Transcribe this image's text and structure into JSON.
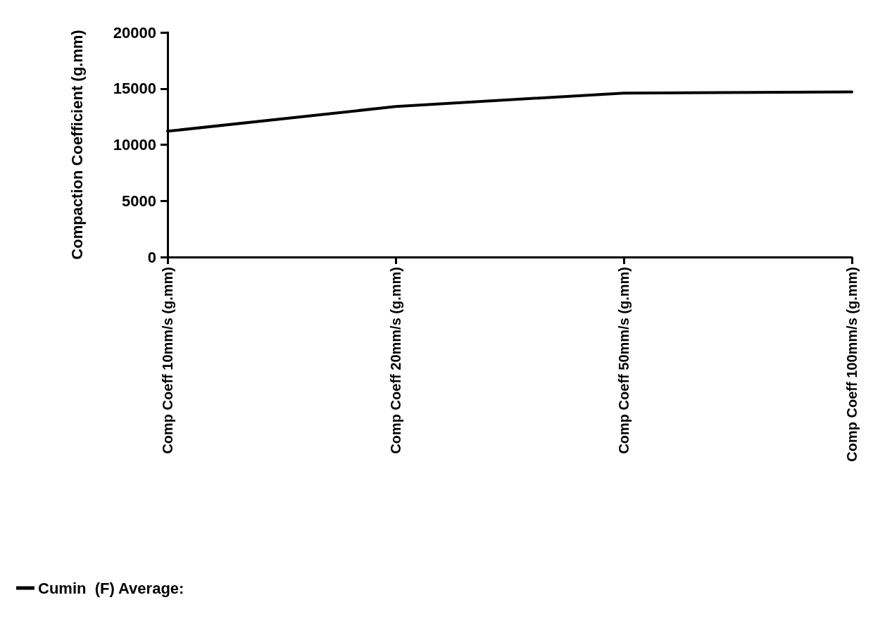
{
  "chart_data": {
    "type": "line",
    "ylabel": "Compaction Coefficient (g.mm)",
    "categories": [
      "Comp Coeff 10mm/s (g.mm)",
      "Comp Coeff 20mm/s (g.mm)",
      "Comp Coeff 50mm/s (g.mm)",
      "Comp Coeff 100mm/s (g.mm)"
    ],
    "series": [
      {
        "name": "Cumin  (F) Average:",
        "color": "#000000",
        "values": [
          11200,
          13400,
          14600,
          14700
        ]
      }
    ],
    "ylim": [
      0,
      20000
    ],
    "yticks": [
      0,
      5000,
      10000,
      15000,
      20000
    ],
    "grid": false,
    "legend": "bottom left",
    "marker": "none",
    "line_style": "solid"
  }
}
